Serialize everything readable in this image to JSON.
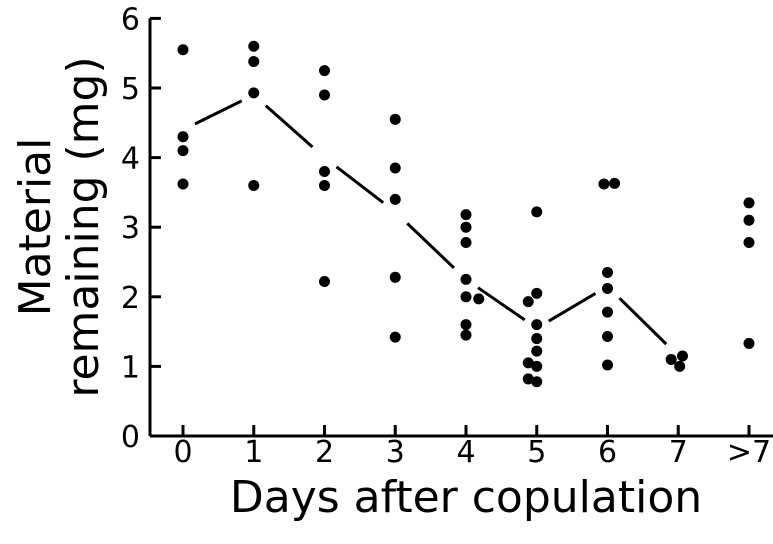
{
  "chart_data": {
    "type": "scatter",
    "title": "",
    "xlabel": "Days after copulation",
    "ylabel_line1": "Material",
    "ylabel_line2": "remaining (mg)",
    "categories": [
      "0",
      "1",
      "2",
      "3",
      "4",
      "5",
      "6",
      "7",
      ">7"
    ],
    "yticks": [
      "0",
      "1",
      "2",
      "3",
      "4",
      "5",
      "6"
    ],
    "ylim": [
      0,
      6
    ],
    "grid": false,
    "points": [
      {
        "cat": "0",
        "y": 5.55
      },
      {
        "cat": "0",
        "y": 4.3
      },
      {
        "cat": "0",
        "y": 4.1
      },
      {
        "cat": "0",
        "y": 3.62
      },
      {
        "cat": "1",
        "y": 5.6
      },
      {
        "cat": "1",
        "y": 5.38
      },
      {
        "cat": "1",
        "y": 4.93
      },
      {
        "cat": "1",
        "y": 3.6
      },
      {
        "cat": "2",
        "y": 5.25
      },
      {
        "cat": "2",
        "y": 4.9
      },
      {
        "cat": "2",
        "y": 3.8
      },
      {
        "cat": "2",
        "y": 3.6
      },
      {
        "cat": "2",
        "y": 2.22
      },
      {
        "cat": "3",
        "y": 4.55
      },
      {
        "cat": "3",
        "y": 3.85
      },
      {
        "cat": "3",
        "y": 3.4
      },
      {
        "cat": "3",
        "y": 2.28
      },
      {
        "cat": "3",
        "y": 1.42
      },
      {
        "cat": "4",
        "y": 3.18
      },
      {
        "cat": "4",
        "y": 3.0
      },
      {
        "cat": "4",
        "y": 2.78
      },
      {
        "cat": "4",
        "y": 2.25
      },
      {
        "cat": "4",
        "y": 2.0,
        "dx": 0.0
      },
      {
        "cat": "4",
        "y": 1.97,
        "dx": 0.18
      },
      {
        "cat": "4",
        "y": 1.6
      },
      {
        "cat": "4",
        "y": 1.45
      },
      {
        "cat": "5",
        "y": 3.22
      },
      {
        "cat": "5",
        "y": 2.05
      },
      {
        "cat": "5",
        "y": 1.93,
        "dx": -0.12
      },
      {
        "cat": "5",
        "y": 1.6
      },
      {
        "cat": "5",
        "y": 1.4
      },
      {
        "cat": "5",
        "y": 1.22
      },
      {
        "cat": "5",
        "y": 1.05,
        "dx": -0.12
      },
      {
        "cat": "5",
        "y": 1.0
      },
      {
        "cat": "5",
        "y": 0.82,
        "dx": -0.12
      },
      {
        "cat": "5",
        "y": 0.78
      },
      {
        "cat": "6",
        "y": 3.62,
        "dx": -0.05
      },
      {
        "cat": "6",
        "y": 3.63,
        "dx": 0.1
      },
      {
        "cat": "6",
        "y": 2.35
      },
      {
        "cat": "6",
        "y": 2.12
      },
      {
        "cat": "6",
        "y": 1.78
      },
      {
        "cat": "6",
        "y": 1.43
      },
      {
        "cat": "6",
        "y": 1.02
      },
      {
        "cat": "7",
        "y": 1.1,
        "dx": -0.1
      },
      {
        "cat": "7",
        "y": 1.15,
        "dx": 0.06
      },
      {
        "cat": "7",
        "y": 1.0,
        "dx": 0.02
      },
      {
        "cat": ">7",
        "y": 3.35
      },
      {
        "cat": ">7",
        "y": 3.1
      },
      {
        "cat": ">7",
        "y": 2.78
      },
      {
        "cat": ">7",
        "y": 1.33
      }
    ],
    "mean_line": {
      "style": "dashed",
      "categories": [
        "0",
        "1",
        "2",
        "3",
        "4",
        "5",
        "6",
        "7"
      ],
      "values": [
        4.4,
        4.9,
        4.0,
        3.22,
        2.25,
        1.55,
        2.15,
        1.15
      ]
    }
  }
}
